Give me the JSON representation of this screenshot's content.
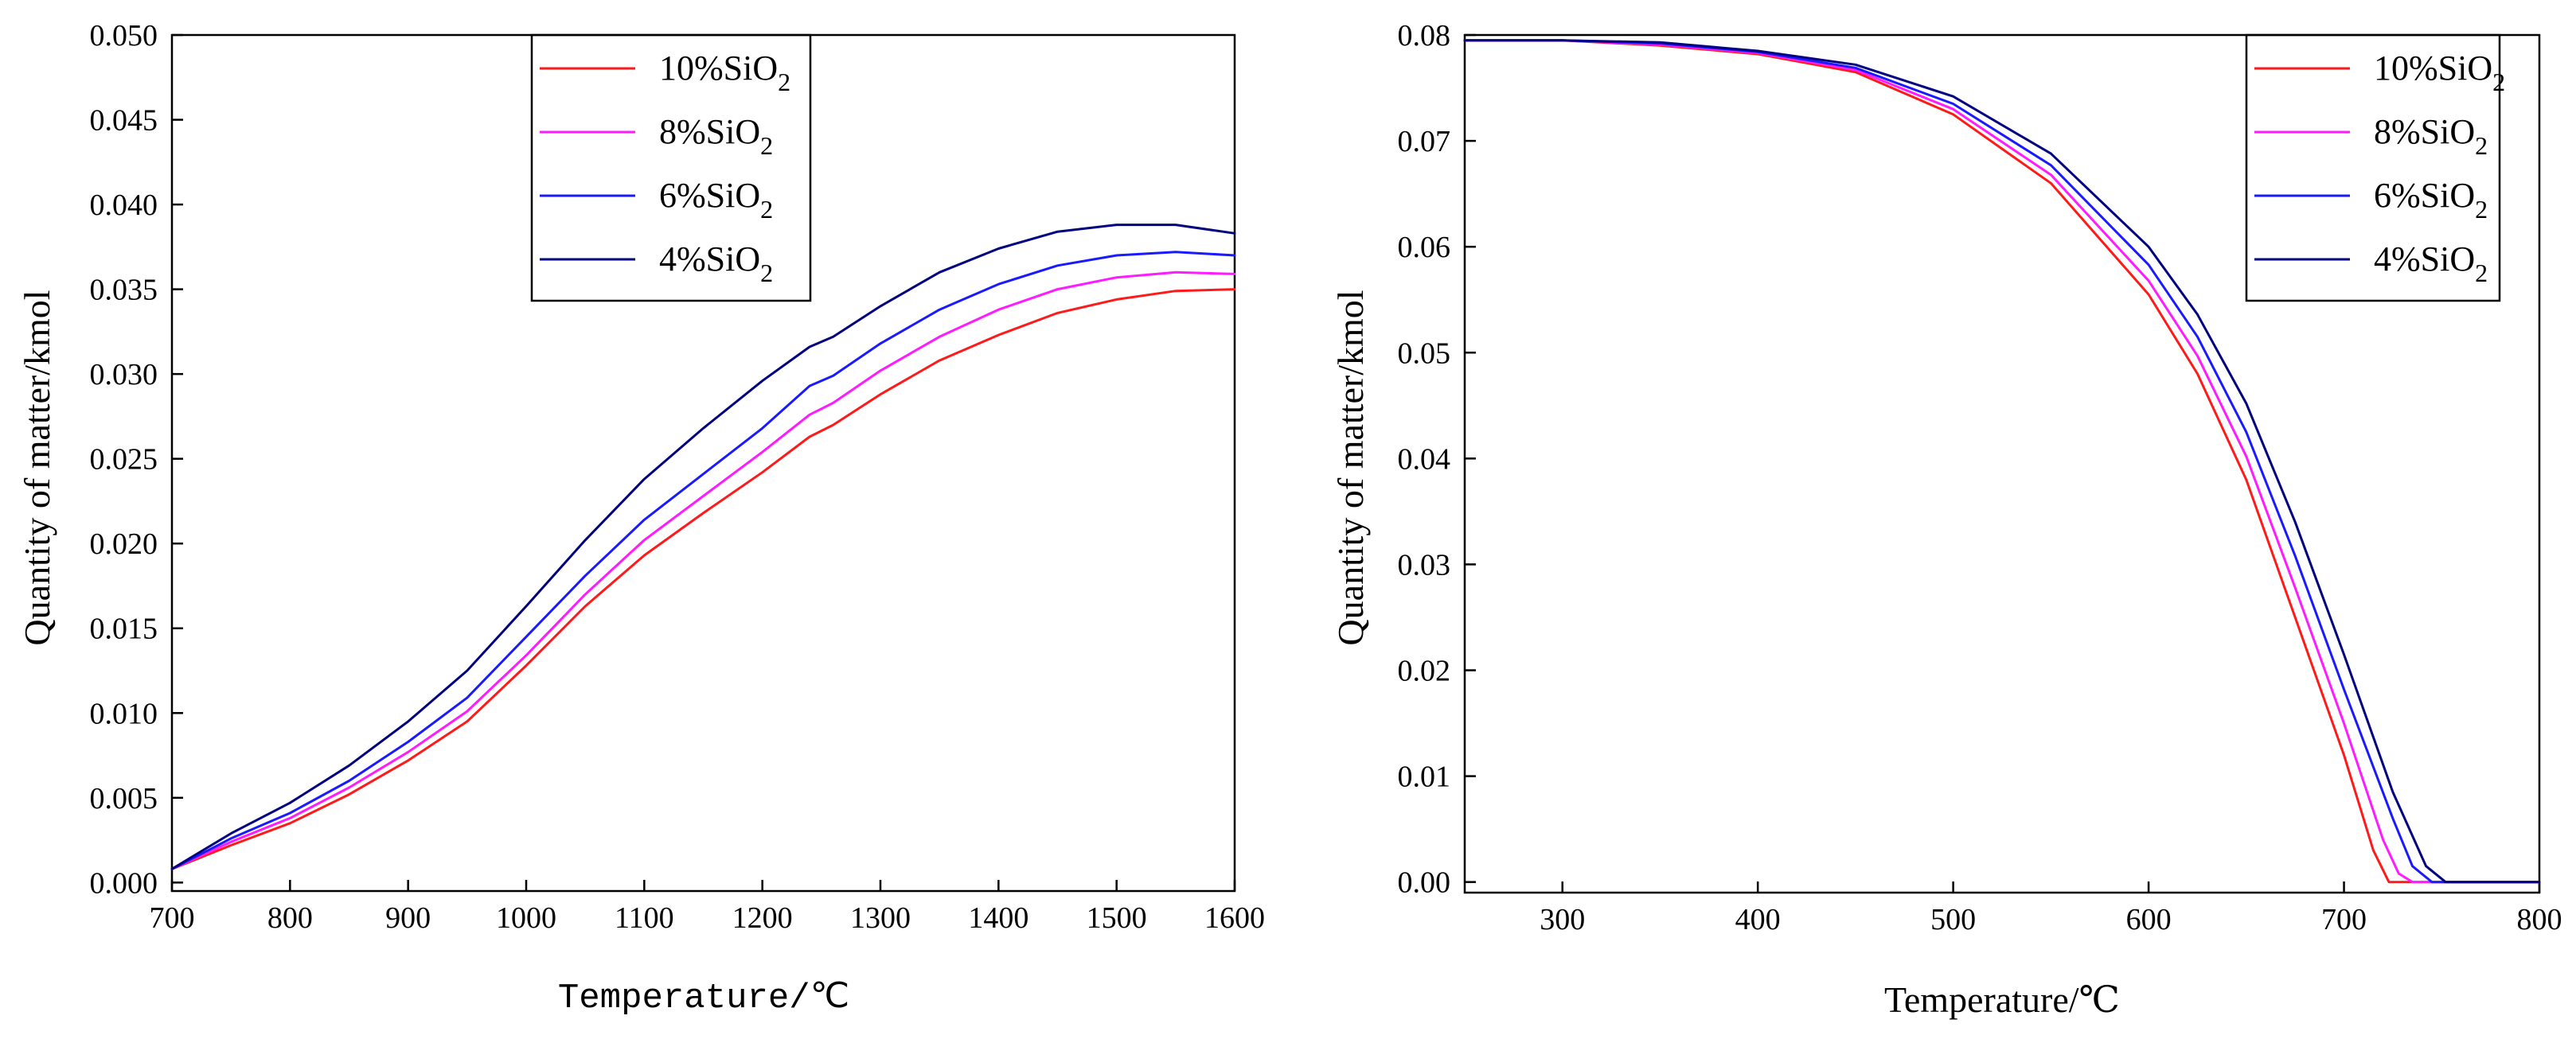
{
  "colors": {
    "red": "#ff1a1a",
    "magenta": "#ff1aff",
    "blue": "#1a1aff",
    "navy": "#000080"
  },
  "chart_data": [
    {
      "type": "line",
      "xlabel": "Temperature/℃",
      "ylabel": "Quantity of matter/kmol",
      "xlim": [
        700,
        1600
      ],
      "ylim": [
        -0.0005,
        0.05
      ],
      "xticks": [
        "700",
        "800",
        "900",
        "1000",
        "1100",
        "1200",
        "1300",
        "1400",
        "1500",
        "1600"
      ],
      "yticks": [
        "0.000",
        "0.005",
        "0.010",
        "0.015",
        "0.020",
        "0.025",
        "0.030",
        "0.035",
        "0.040",
        "0.045",
        "0.050"
      ],
      "legend_position": "top-center",
      "series": [
        {
          "name": "10%SiO2",
          "label_main": "10%SiO",
          "label_sub": "2",
          "color": "#ff1a1a",
          "x": [
            700,
            750,
            800,
            850,
            900,
            950,
            1000,
            1050,
            1100,
            1150,
            1200,
            1240,
            1260,
            1300,
            1350,
            1400,
            1450,
            1500,
            1550,
            1600
          ],
          "y": [
            0.0008,
            0.0022,
            0.0035,
            0.0052,
            0.0072,
            0.0095,
            0.0128,
            0.0163,
            0.0193,
            0.0218,
            0.0242,
            0.0263,
            0.027,
            0.0288,
            0.0308,
            0.0323,
            0.0336,
            0.0344,
            0.0349,
            0.035
          ]
        },
        {
          "name": "8%SiO2",
          "label_main": "8%SiO",
          "label_sub": "2",
          "color": "#ff1aff",
          "x": [
            700,
            750,
            800,
            850,
            900,
            950,
            1000,
            1050,
            1100,
            1150,
            1200,
            1240,
            1260,
            1300,
            1350,
            1400,
            1450,
            1500,
            1550,
            1600
          ],
          "y": [
            0.0008,
            0.0024,
            0.0038,
            0.0056,
            0.0077,
            0.0101,
            0.0134,
            0.017,
            0.0202,
            0.0228,
            0.0254,
            0.0276,
            0.0283,
            0.0302,
            0.0322,
            0.0338,
            0.035,
            0.0357,
            0.036,
            0.0359
          ]
        },
        {
          "name": "6%SiO2",
          "label_main": "6%SiO",
          "label_sub": "2",
          "color": "#1a1aff",
          "x": [
            700,
            750,
            800,
            850,
            900,
            950,
            1000,
            1050,
            1100,
            1150,
            1200,
            1240,
            1260,
            1300,
            1350,
            1400,
            1450,
            1500,
            1550,
            1600
          ],
          "y": [
            0.0008,
            0.0026,
            0.0041,
            0.006,
            0.0083,
            0.0109,
            0.0145,
            0.0181,
            0.0214,
            0.0241,
            0.0268,
            0.0293,
            0.0299,
            0.0318,
            0.0338,
            0.0353,
            0.0364,
            0.037,
            0.0372,
            0.037
          ]
        },
        {
          "name": "4%SiO2",
          "label_main": "4%SiO",
          "label_sub": "2",
          "color": "#000080",
          "x": [
            700,
            750,
            800,
            850,
            900,
            950,
            1000,
            1050,
            1100,
            1150,
            1200,
            1240,
            1260,
            1300,
            1350,
            1400,
            1450,
            1500,
            1550,
            1600
          ],
          "y": [
            0.0008,
            0.0029,
            0.0047,
            0.0069,
            0.0095,
            0.0125,
            0.0163,
            0.0202,
            0.0238,
            0.0268,
            0.0296,
            0.0316,
            0.0322,
            0.034,
            0.036,
            0.0374,
            0.0384,
            0.0388,
            0.0388,
            0.0383
          ]
        }
      ]
    },
    {
      "type": "line",
      "xlabel": "Temperature/℃",
      "ylabel": "Quantity of matter/kmol",
      "xlim": [
        250,
        800
      ],
      "ylim": [
        -0.001,
        0.08
      ],
      "xticks": [
        "300",
        "400",
        "500",
        "600",
        "700",
        "800"
      ],
      "yticks": [
        "0.00",
        "0.01",
        "0.02",
        "0.03",
        "0.04",
        "0.05",
        "0.06",
        "0.07",
        "0.08"
      ],
      "legend_position": "top-right",
      "series": [
        {
          "name": "10%SiO2",
          "label_main": "10%SiO",
          "label_sub": "2",
          "color": "#ff1a1a",
          "x": [
            250,
            300,
            350,
            400,
            450,
            500,
            550,
            600,
            625,
            650,
            675,
            700,
            715,
            723,
            800
          ],
          "y": [
            0.0795,
            0.0795,
            0.079,
            0.0782,
            0.0765,
            0.0725,
            0.066,
            0.0555,
            0.048,
            0.038,
            0.025,
            0.012,
            0.003,
            0.0,
            0.0
          ]
        },
        {
          "name": "8%SiO2",
          "label_main": "8%SiO",
          "label_sub": "2",
          "color": "#ff1aff",
          "x": [
            250,
            300,
            350,
            400,
            450,
            500,
            550,
            600,
            625,
            650,
            675,
            700,
            720,
            728,
            735,
            800
          ],
          "y": [
            0.0795,
            0.0795,
            0.0791,
            0.0783,
            0.0767,
            0.073,
            0.0668,
            0.0568,
            0.0497,
            0.0402,
            0.0278,
            0.015,
            0.004,
            0.0008,
            0.0,
            0.0
          ]
        },
        {
          "name": "6%SiO2",
          "label_main": "6%SiO",
          "label_sub": "2",
          "color": "#1a1aff",
          "x": [
            250,
            300,
            350,
            400,
            450,
            500,
            550,
            600,
            625,
            650,
            675,
            700,
            725,
            735,
            745,
            800
          ],
          "y": [
            0.0795,
            0.0795,
            0.0792,
            0.0784,
            0.0769,
            0.0735,
            0.0677,
            0.0583,
            0.0515,
            0.0425,
            0.0308,
            0.0182,
            0.006,
            0.0015,
            0.0,
            0.0
          ]
        },
        {
          "name": "4%SiO2",
          "label_main": "4%SiO",
          "label_sub": "2",
          "color": "#000080",
          "x": [
            250,
            300,
            350,
            400,
            450,
            500,
            550,
            600,
            625,
            650,
            675,
            700,
            725,
            742,
            752,
            800
          ],
          "y": [
            0.0795,
            0.0795,
            0.0793,
            0.0785,
            0.0772,
            0.0742,
            0.0688,
            0.06,
            0.0536,
            0.0452,
            0.034,
            0.0215,
            0.0085,
            0.0015,
            0.0,
            0.0
          ]
        }
      ]
    }
  ]
}
